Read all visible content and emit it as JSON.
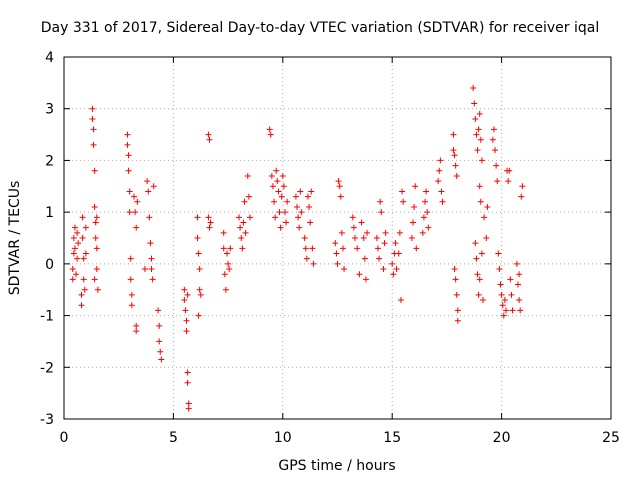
{
  "chart_data": {
    "type": "scatter",
    "title": "Day 331 of 2017, Sidereal Day-to-day VTEC variation (SDTVAR) for receiver iqal",
    "xlabel": "GPS time / hours",
    "ylabel": "SDTVAR / TECUs",
    "xlim": [
      0,
      25
    ],
    "ylim": [
      -3,
      4
    ],
    "x_ticks": [
      0,
      5,
      10,
      15,
      20,
      25
    ],
    "y_ticks": [
      -3,
      -2,
      -1,
      0,
      1,
      2,
      3,
      4
    ],
    "grid": true,
    "marker": "plus",
    "color": "#ff0000",
    "series": [
      {
        "name": "SDTVAR",
        "points": [
          [
            0.4,
            -0.3
          ],
          [
            0.4,
            -0.1
          ],
          [
            0.45,
            0.2
          ],
          [
            0.45,
            0.5
          ],
          [
            0.5,
            0.7
          ],
          [
            0.5,
            0.3
          ],
          [
            0.55,
            -0.2
          ],
          [
            0.6,
            0.6
          ],
          [
            0.6,
            0.1
          ],
          [
            0.65,
            0.4
          ],
          [
            0.8,
            -0.6
          ],
          [
            0.8,
            -0.8
          ],
          [
            0.85,
            0.9
          ],
          [
            0.85,
            0.5
          ],
          [
            0.9,
            0.1
          ],
          [
            0.9,
            -0.3
          ],
          [
            0.95,
            -0.5
          ],
          [
            1.0,
            0.2
          ],
          [
            1.0,
            0.7
          ],
          [
            1.3,
            3.0
          ],
          [
            1.3,
            2.8
          ],
          [
            1.35,
            2.6
          ],
          [
            1.35,
            2.3
          ],
          [
            1.4,
            1.8
          ],
          [
            1.4,
            1.1
          ],
          [
            1.45,
            0.8
          ],
          [
            1.45,
            0.5
          ],
          [
            1.5,
            0.3
          ],
          [
            1.5,
            -0.1
          ],
          [
            1.55,
            -0.5
          ],
          [
            1.5,
            0.9
          ],
          [
            1.4,
            -0.3
          ],
          [
            2.9,
            2.5
          ],
          [
            2.9,
            2.3
          ],
          [
            2.95,
            2.1
          ],
          [
            2.95,
            1.8
          ],
          [
            3.0,
            1.4
          ],
          [
            3.0,
            1.0
          ],
          [
            3.05,
            0.1
          ],
          [
            3.05,
            -0.3
          ],
          [
            3.1,
            -0.6
          ],
          [
            3.1,
            -0.8
          ],
          [
            3.2,
            1.3
          ],
          [
            3.25,
            1.0
          ],
          [
            3.3,
            0.7
          ],
          [
            3.35,
            1.2
          ],
          [
            3.3,
            -1.2
          ],
          [
            3.3,
            -1.3
          ],
          [
            3.8,
            1.6
          ],
          [
            3.85,
            1.4
          ],
          [
            3.9,
            0.9
          ],
          [
            3.95,
            0.4
          ],
          [
            4.0,
            0.1
          ],
          [
            4.0,
            -0.1
          ],
          [
            4.05,
            -0.3
          ],
          [
            4.1,
            1.5
          ],
          [
            3.7,
            -0.1
          ],
          [
            4.3,
            -0.9
          ],
          [
            4.35,
            -1.2
          ],
          [
            4.35,
            -1.5
          ],
          [
            4.4,
            -1.7
          ],
          [
            4.45,
            -1.85
          ],
          [
            5.5,
            -0.5
          ],
          [
            5.5,
            -0.7
          ],
          [
            5.55,
            -0.9
          ],
          [
            5.6,
            -1.1
          ],
          [
            5.6,
            -1.3
          ],
          [
            5.65,
            -2.1
          ],
          [
            5.65,
            -2.3
          ],
          [
            5.7,
            -2.7
          ],
          [
            5.7,
            -2.8
          ],
          [
            5.65,
            -0.6
          ],
          [
            6.1,
            0.9
          ],
          [
            6.1,
            0.5
          ],
          [
            6.15,
            0.2
          ],
          [
            6.2,
            -0.1
          ],
          [
            6.2,
            -0.5
          ],
          [
            6.25,
            -0.6
          ],
          [
            6.15,
            -1.0
          ],
          [
            6.6,
            2.5
          ],
          [
            6.6,
            0.9
          ],
          [
            6.65,
            0.7
          ],
          [
            6.7,
            0.8
          ],
          [
            6.65,
            2.4
          ],
          [
            7.3,
            0.6
          ],
          [
            7.3,
            0.3
          ],
          [
            7.35,
            -0.2
          ],
          [
            7.4,
            -0.5
          ],
          [
            7.45,
            0.2
          ],
          [
            7.5,
            0.0
          ],
          [
            7.55,
            -0.1
          ],
          [
            7.6,
            0.3
          ],
          [
            8.0,
            0.9
          ],
          [
            8.05,
            0.7
          ],
          [
            8.1,
            0.5
          ],
          [
            8.15,
            0.3
          ],
          [
            8.2,
            0.8
          ],
          [
            8.25,
            1.2
          ],
          [
            8.3,
            0.6
          ],
          [
            8.4,
            1.7
          ],
          [
            8.45,
            1.3
          ],
          [
            8.5,
            0.9
          ],
          [
            9.4,
            2.6
          ],
          [
            9.45,
            2.5
          ],
          [
            9.5,
            1.7
          ],
          [
            9.55,
            1.5
          ],
          [
            9.6,
            1.2
          ],
          [
            9.65,
            0.9
          ],
          [
            9.7,
            1.8
          ],
          [
            9.75,
            1.6
          ],
          [
            9.8,
            1.4
          ],
          [
            9.85,
            1.0
          ],
          [
            9.9,
            0.7
          ],
          [
            9.95,
            1.3
          ],
          [
            10.0,
            1.7
          ],
          [
            10.05,
            1.5
          ],
          [
            10.1,
            1.0
          ],
          [
            10.15,
            0.8
          ],
          [
            10.2,
            1.2
          ],
          [
            10.6,
            1.3
          ],
          [
            10.65,
            1.1
          ],
          [
            10.7,
            0.9
          ],
          [
            10.75,
            0.7
          ],
          [
            10.8,
            1.4
          ],
          [
            10.85,
            1.0
          ],
          [
            11.0,
            0.5
          ],
          [
            11.05,
            0.3
          ],
          [
            11.1,
            0.1
          ],
          [
            11.15,
            1.3
          ],
          [
            11.2,
            1.1
          ],
          [
            11.25,
            0.8
          ],
          [
            11.3,
            1.4
          ],
          [
            11.35,
            0.3
          ],
          [
            11.4,
            0.0
          ],
          [
            12.4,
            0.4
          ],
          [
            12.45,
            0.2
          ],
          [
            12.5,
            0.0
          ],
          [
            12.55,
            1.6
          ],
          [
            12.6,
            1.5
          ],
          [
            12.65,
            1.3
          ],
          [
            12.7,
            0.6
          ],
          [
            12.75,
            0.3
          ],
          [
            12.8,
            -0.1
          ],
          [
            13.2,
            0.9
          ],
          [
            13.25,
            0.7
          ],
          [
            13.3,
            0.5
          ],
          [
            13.4,
            0.3
          ],
          [
            13.5,
            -0.2
          ],
          [
            13.6,
            0.8
          ],
          [
            13.7,
            0.5
          ],
          [
            13.75,
            0.1
          ],
          [
            13.8,
            -0.3
          ],
          [
            13.85,
            0.6
          ],
          [
            14.3,
            0.5
          ],
          [
            14.35,
            0.3
          ],
          [
            14.4,
            0.1
          ],
          [
            14.45,
            1.2
          ],
          [
            14.5,
            1.0
          ],
          [
            14.6,
            -0.1
          ],
          [
            14.65,
            0.4
          ],
          [
            14.7,
            0.6
          ],
          [
            15.0,
            0.0
          ],
          [
            15.05,
            -0.2
          ],
          [
            15.1,
            0.2
          ],
          [
            15.15,
            0.4
          ],
          [
            15.2,
            -0.1
          ],
          [
            15.3,
            0.2
          ],
          [
            15.35,
            0.6
          ],
          [
            15.4,
            -0.7
          ],
          [
            15.45,
            1.4
          ],
          [
            15.5,
            1.2
          ],
          [
            15.9,
            0.5
          ],
          [
            15.95,
            0.8
          ],
          [
            16.0,
            1.1
          ],
          [
            16.05,
            1.5
          ],
          [
            16.1,
            0.3
          ],
          [
            16.4,
            0.6
          ],
          [
            16.45,
            0.9
          ],
          [
            16.5,
            1.2
          ],
          [
            16.55,
            1.4
          ],
          [
            16.6,
            1.0
          ],
          [
            16.65,
            0.7
          ],
          [
            17.1,
            1.6
          ],
          [
            17.15,
            1.8
          ],
          [
            17.2,
            2.0
          ],
          [
            17.25,
            1.4
          ],
          [
            17.3,
            1.2
          ],
          [
            17.8,
            2.2
          ],
          [
            17.85,
            2.1
          ],
          [
            17.9,
            1.9
          ],
          [
            17.95,
            1.7
          ],
          [
            17.8,
            2.5
          ],
          [
            17.85,
            -0.1
          ],
          [
            17.9,
            -0.3
          ],
          [
            17.95,
            -0.6
          ],
          [
            18.0,
            -0.9
          ],
          [
            18.0,
            -1.1
          ],
          [
            18.7,
            3.4
          ],
          [
            18.75,
            3.1
          ],
          [
            18.8,
            2.8
          ],
          [
            18.85,
            2.5
          ],
          [
            18.9,
            2.2
          ],
          [
            18.95,
            2.6
          ],
          [
            19.0,
            2.9
          ],
          [
            19.05,
            2.4
          ],
          [
            19.1,
            2.0
          ],
          [
            19.0,
            1.5
          ],
          [
            19.05,
            1.2
          ],
          [
            18.8,
            0.4
          ],
          [
            18.85,
            0.1
          ],
          [
            18.9,
            -0.2
          ],
          [
            18.95,
            -0.6
          ],
          [
            19.0,
            -0.3
          ],
          [
            19.1,
            0.2
          ],
          [
            19.15,
            -0.7
          ],
          [
            19.2,
            0.9
          ],
          [
            19.3,
            0.5
          ],
          [
            19.35,
            1.1
          ],
          [
            19.6,
            2.4
          ],
          [
            19.65,
            2.6
          ],
          [
            19.7,
            2.2
          ],
          [
            19.75,
            1.9
          ],
          [
            19.8,
            1.6
          ],
          [
            19.85,
            0.2
          ],
          [
            19.9,
            -0.1
          ],
          [
            19.95,
            -0.4
          ],
          [
            20.0,
            -0.6
          ],
          [
            20.05,
            -0.8
          ],
          [
            20.1,
            -1.0
          ],
          [
            20.15,
            -0.7
          ],
          [
            20.2,
            -0.9
          ],
          [
            20.25,
            1.8
          ],
          [
            20.3,
            1.6
          ],
          [
            20.35,
            1.8
          ],
          [
            20.4,
            -0.3
          ],
          [
            20.45,
            -0.6
          ],
          [
            20.5,
            -0.9
          ],
          [
            20.7,
            0.0
          ],
          [
            20.75,
            -0.4
          ],
          [
            20.8,
            -0.7
          ],
          [
            20.85,
            -0.9
          ],
          [
            20.9,
            1.3
          ],
          [
            20.95,
            1.5
          ],
          [
            20.8,
            -0.2
          ]
        ]
      }
    ]
  }
}
